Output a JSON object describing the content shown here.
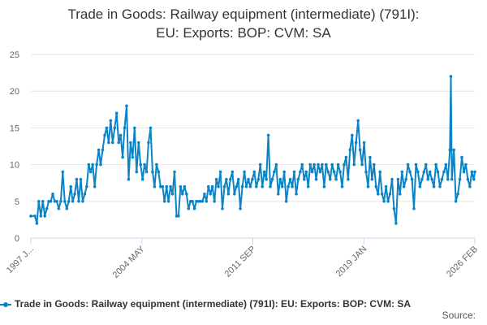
{
  "title_lines": [
    "Trade in Goods: Railway equipment (intermediate) (791I):",
    "EU: Exports: BOP: CVM: SA"
  ],
  "legend_label": "Trade in Goods: Railway equipment (intermediate) (791I): EU: Exports: BOP: CVM: SA",
  "source_label": "Source:",
  "colors": {
    "series": "#0b83c4",
    "grid": "#e6e6e6",
    "axis": "#ccd6eb"
  },
  "chart_data": {
    "type": "line",
    "title": "Trade in Goods: Railway equipment (intermediate) (791I): EU: Exports: BOP: CVM: SA",
    "xlabel": "",
    "ylabel": "",
    "ylim": [
      0,
      25
    ],
    "yticks": [
      0,
      5,
      10,
      15,
      20,
      25
    ],
    "xtick_labels": [
      "1997 JAN",
      "2004 MAY",
      "2011 SEP",
      "2019 JAN",
      "2026 FEB"
    ],
    "xtick_display": [
      "1997 J...",
      "2004 MAY",
      "2011 SEP",
      "2019 JAN",
      "2026 FEB"
    ],
    "x_start": "1997 JAN",
    "x_end": "2026 FEB",
    "grid": true,
    "legend_position": "bottom",
    "series": [
      {
        "name": "Trade in Goods: Railway equipment (intermediate) (791I): EU: Exports: BOP: CVM: SA",
        "anchors": [
          [
            0,
            3
          ],
          [
            4,
            3
          ],
          [
            6,
            2
          ],
          [
            8,
            5
          ],
          [
            10,
            3
          ],
          [
            12,
            5
          ],
          [
            14,
            3
          ],
          [
            16,
            4
          ],
          [
            18,
            5
          ],
          [
            20,
            5
          ],
          [
            22,
            6
          ],
          [
            24,
            5
          ],
          [
            26,
            5
          ],
          [
            28,
            4
          ],
          [
            30,
            5
          ],
          [
            32,
            9
          ],
          [
            34,
            5
          ],
          [
            36,
            4
          ],
          [
            38,
            5
          ],
          [
            40,
            7
          ],
          [
            42,
            5
          ],
          [
            44,
            6
          ],
          [
            46,
            8
          ],
          [
            48,
            5
          ],
          [
            50,
            8
          ],
          [
            52,
            5
          ],
          [
            54,
            6
          ],
          [
            56,
            7
          ],
          [
            58,
            10
          ],
          [
            60,
            9
          ],
          [
            62,
            10
          ],
          [
            64,
            7
          ],
          [
            66,
            10
          ],
          [
            68,
            12
          ],
          [
            70,
            10
          ],
          [
            72,
            12
          ],
          [
            74,
            14
          ],
          [
            76,
            15
          ],
          [
            78,
            13
          ],
          [
            80,
            16
          ],
          [
            82,
            13
          ],
          [
            84,
            15
          ],
          [
            86,
            17
          ],
          [
            88,
            13
          ],
          [
            90,
            14
          ],
          [
            92,
            11
          ],
          [
            94,
            15
          ],
          [
            96,
            18
          ],
          [
            98,
            8
          ],
          [
            100,
            13
          ],
          [
            102,
            11
          ],
          [
            104,
            15
          ],
          [
            106,
            9
          ],
          [
            108,
            13
          ],
          [
            110,
            10
          ],
          [
            112,
            8
          ],
          [
            114,
            10
          ],
          [
            116,
            9
          ],
          [
            118,
            13
          ],
          [
            120,
            15
          ],
          [
            122,
            9
          ],
          [
            124,
            7
          ],
          [
            126,
            10
          ],
          [
            128,
            9
          ],
          [
            130,
            7
          ],
          [
            132,
            7
          ],
          [
            134,
            5
          ],
          [
            136,
            7
          ],
          [
            138,
            5
          ],
          [
            140,
            7
          ],
          [
            142,
            6
          ],
          [
            144,
            9
          ],
          [
            146,
            3
          ],
          [
            148,
            3
          ],
          [
            150,
            7
          ],
          [
            152,
            6
          ],
          [
            154,
            7
          ],
          [
            156,
            6
          ],
          [
            158,
            4
          ],
          [
            160,
            5
          ],
          [
            162,
            5
          ],
          [
            164,
            4
          ],
          [
            166,
            5
          ],
          [
            168,
            5
          ],
          [
            170,
            5
          ],
          [
            172,
            5
          ],
          [
            174,
            6
          ],
          [
            176,
            5
          ],
          [
            178,
            7
          ],
          [
            180,
            6
          ],
          [
            182,
            7
          ],
          [
            184,
            5
          ],
          [
            186,
            8
          ],
          [
            188,
            7
          ],
          [
            190,
            9
          ],
          [
            192,
            4
          ],
          [
            194,
            7
          ],
          [
            196,
            8
          ],
          [
            198,
            6
          ],
          [
            200,
            8
          ],
          [
            202,
            9
          ],
          [
            204,
            6
          ],
          [
            206,
            7
          ],
          [
            208,
            8
          ],
          [
            210,
            4
          ],
          [
            212,
            7
          ],
          [
            214,
            9
          ],
          [
            216,
            7
          ],
          [
            218,
            8
          ],
          [
            220,
            7
          ],
          [
            222,
            8
          ],
          [
            224,
            9
          ],
          [
            226,
            7
          ],
          [
            228,
            8
          ],
          [
            230,
            10
          ],
          [
            232,
            7
          ],
          [
            234,
            9
          ],
          [
            236,
            8
          ],
          [
            238,
            14
          ],
          [
            240,
            7
          ],
          [
            242,
            8
          ],
          [
            244,
            9
          ],
          [
            246,
            10
          ],
          [
            248,
            6
          ],
          [
            250,
            8
          ],
          [
            252,
            7
          ],
          [
            254,
            9
          ],
          [
            256,
            5
          ],
          [
            258,
            7
          ],
          [
            260,
            8
          ],
          [
            262,
            7
          ],
          [
            264,
            9
          ],
          [
            266,
            6
          ],
          [
            268,
            8
          ],
          [
            270,
            9
          ],
          [
            272,
            10
          ],
          [
            274,
            8
          ],
          [
            276,
            9
          ],
          [
            278,
            7
          ],
          [
            280,
            10
          ],
          [
            282,
            9
          ],
          [
            284,
            10
          ],
          [
            286,
            8
          ],
          [
            288,
            10
          ],
          [
            290,
            9
          ],
          [
            292,
            10
          ],
          [
            294,
            7
          ],
          [
            296,
            10
          ],
          [
            298,
            9
          ],
          [
            300,
            8
          ],
          [
            302,
            10
          ],
          [
            304,
            9
          ],
          [
            306,
            8
          ],
          [
            308,
            10
          ],
          [
            310,
            9
          ],
          [
            312,
            7
          ],
          [
            314,
            10
          ],
          [
            316,
            11
          ],
          [
            318,
            8
          ],
          [
            320,
            12
          ],
          [
            322,
            14
          ],
          [
            324,
            10
          ],
          [
            326,
            13
          ],
          [
            328,
            16
          ],
          [
            330,
            12
          ],
          [
            332,
            10
          ],
          [
            334,
            13
          ],
          [
            336,
            9
          ],
          [
            338,
            7
          ],
          [
            340,
            11
          ],
          [
            342,
            8
          ],
          [
            344,
            10
          ],
          [
            346,
            7
          ],
          [
            348,
            6
          ],
          [
            350,
            9
          ],
          [
            352,
            6
          ],
          [
            354,
            5
          ],
          [
            356,
            7
          ],
          [
            358,
            5
          ],
          [
            360,
            6
          ],
          [
            362,
            8
          ],
          [
            364,
            4
          ],
          [
            366,
            2
          ],
          [
            368,
            8
          ],
          [
            370,
            6
          ],
          [
            372,
            9
          ],
          [
            374,
            7
          ],
          [
            376,
            8
          ],
          [
            378,
            10
          ],
          [
            380,
            9
          ],
          [
            382,
            8
          ],
          [
            384,
            4
          ],
          [
            386,
            10
          ],
          [
            388,
            9
          ],
          [
            390,
            7
          ],
          [
            392,
            8
          ],
          [
            394,
            9
          ],
          [
            396,
            10
          ],
          [
            398,
            8
          ],
          [
            400,
            9
          ],
          [
            402,
            8
          ],
          [
            404,
            7
          ],
          [
            406,
            10
          ],
          [
            408,
            9
          ],
          [
            410,
            7
          ],
          [
            412,
            8
          ],
          [
            414,
            9
          ],
          [
            416,
            10
          ],
          [
            418,
            8
          ],
          [
            420,
            12
          ],
          [
            421,
            22
          ],
          [
            422,
            8
          ],
          [
            424,
            12
          ],
          [
            426,
            5
          ],
          [
            428,
            6
          ],
          [
            430,
            8
          ],
          [
            432,
            11
          ],
          [
            434,
            9
          ],
          [
            436,
            10
          ],
          [
            438,
            8
          ],
          [
            440,
            7
          ],
          [
            442,
            9
          ],
          [
            444,
            8
          ],
          [
            445,
            9
          ]
        ]
      }
    ]
  }
}
